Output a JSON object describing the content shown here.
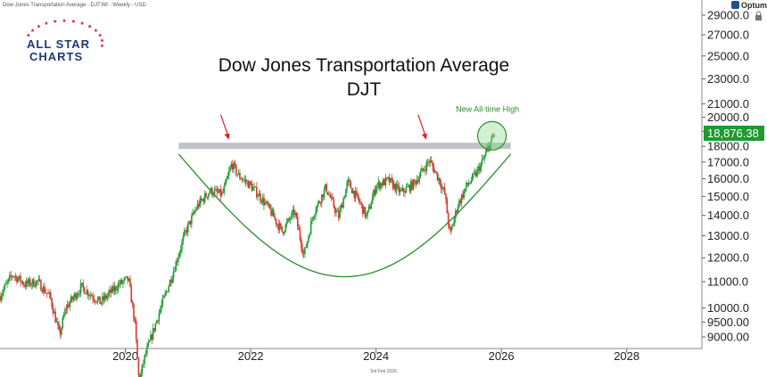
{
  "header": {
    "series_label": "Dow Jones Transportation Average - DJT:WI - Weekly - USD",
    "optuma_label": "Optuma",
    "brand_top": "ALL STAR",
    "brand_bottom": "CHARTS",
    "date_footer": "3rd Feb 2026"
  },
  "chart_data": {
    "type": "candlestick",
    "title": "Dow Jones Transportation Average",
    "subtitle": "DJT",
    "y_scale": "log",
    "ylim": [
      8700,
      30000
    ],
    "xlim": [
      2018.0,
      2029.2
    ],
    "y_ticks": [
      {
        "value": 29000,
        "label": "29000.0"
      },
      {
        "value": 27000,
        "label": "27000.0"
      },
      {
        "value": 25000,
        "label": "25000.0"
      },
      {
        "value": 23000,
        "label": "23000.0"
      },
      {
        "value": 21000,
        "label": "21000.0"
      },
      {
        "value": 20000,
        "label": "20000.0"
      },
      {
        "value": 19000,
        "label": "19000.0"
      },
      {
        "value": 18000,
        "label": "18000.0"
      },
      {
        "value": 17000,
        "label": "17000.0"
      },
      {
        "value": 16000,
        "label": "16000.0"
      },
      {
        "value": 15000,
        "label": "15000.0"
      },
      {
        "value": 14000,
        "label": "14000.0"
      },
      {
        "value": 13000,
        "label": "13000.0"
      },
      {
        "value": 12000,
        "label": "12000.0"
      },
      {
        "value": 11000,
        "label": "11000.0"
      },
      {
        "value": 10000,
        "label": "10000.0"
      },
      {
        "value": 9500,
        "label": "9500.00"
      },
      {
        "value": 9000,
        "label": "9000.00"
      }
    ],
    "x_ticks": [
      {
        "value": 2020,
        "label": "2020"
      },
      {
        "value": 2022,
        "label": "2022"
      },
      {
        "value": 2024,
        "label": "2024"
      },
      {
        "value": 2026,
        "label": "2026"
      },
      {
        "value": 2028,
        "label": "2028"
      }
    ],
    "last_price": {
      "value": 18876.38,
      "label": "18,876.38"
    },
    "resistance": {
      "value": 18000,
      "x_start": 2020.85,
      "x_end": 2026.15
    },
    "annotations": [
      {
        "text": "New All-time High",
        "x": 2025.78,
        "y": 19500
      }
    ],
    "arrows": [
      {
        "x": 2021.65,
        "y": 18200
      },
      {
        "x": 2024.8,
        "y": 18200
      }
    ],
    "highlight_circle": {
      "x": 2025.85,
      "y": 18700
    },
    "cup_arc": {
      "x_start": 2020.85,
      "x_bottom": 2023.35,
      "x_end": 2026.15,
      "y_rim": 17500,
      "y_bottom": 11200
    },
    "anchors": [
      [
        2018.0,
        10450
      ],
      [
        2018.2,
        11300
      ],
      [
        2018.4,
        10900
      ],
      [
        2018.6,
        11000
      ],
      [
        2018.8,
        10400
      ],
      [
        2018.95,
        9050
      ],
      [
        2019.05,
        10000
      ],
      [
        2019.3,
        10800
      ],
      [
        2019.6,
        10200
      ],
      [
        2019.9,
        10900
      ],
      [
        2020.05,
        11100
      ],
      [
        2020.15,
        9500
      ],
      [
        2020.22,
        7600
      ],
      [
        2020.3,
        8300
      ],
      [
        2020.55,
        9900
      ],
      [
        2020.75,
        11300
      ],
      [
        2020.95,
        13100
      ],
      [
        2021.15,
        14500
      ],
      [
        2021.35,
        15300
      ],
      [
        2021.55,
        15100
      ],
      [
        2021.7,
        16900
      ],
      [
        2021.8,
        16200
      ],
      [
        2022.0,
        15600
      ],
      [
        2022.15,
        15000
      ],
      [
        2022.3,
        14300
      ],
      [
        2022.5,
        13200
      ],
      [
        2022.7,
        14200
      ],
      [
        2022.85,
        12100
      ],
      [
        2023.0,
        14100
      ],
      [
        2023.2,
        15500
      ],
      [
        2023.4,
        13900
      ],
      [
        2023.55,
        15800
      ],
      [
        2023.75,
        14600
      ],
      [
        2023.85,
        13900
      ],
      [
        2024.0,
        15600
      ],
      [
        2024.2,
        15900
      ],
      [
        2024.4,
        15200
      ],
      [
        2024.6,
        15700
      ],
      [
        2024.75,
        16500
      ],
      [
        2024.85,
        17100
      ],
      [
        2025.0,
        16000
      ],
      [
        2025.1,
        15100
      ],
      [
        2025.18,
        13000
      ],
      [
        2025.3,
        14500
      ],
      [
        2025.45,
        15600
      ],
      [
        2025.6,
        16300
      ],
      [
        2025.72,
        17200
      ],
      [
        2025.82,
        18200
      ],
      [
        2025.9,
        18876
      ]
    ]
  }
}
